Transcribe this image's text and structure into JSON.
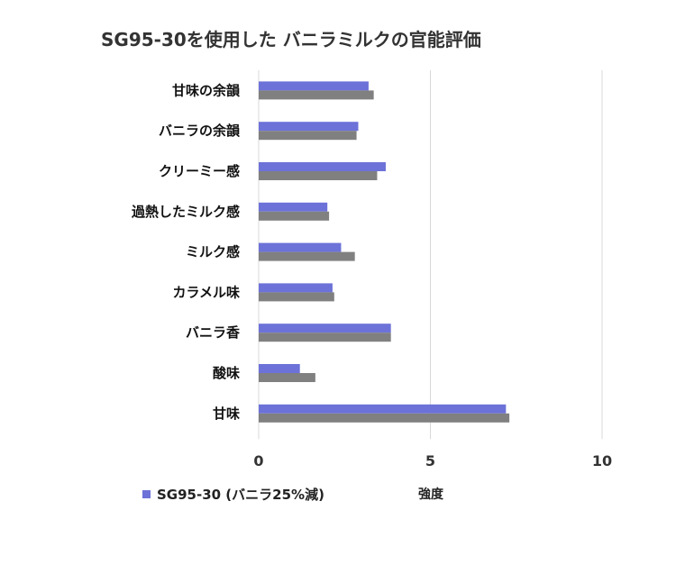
{
  "chart_data": {
    "type": "bar",
    "orientation": "horizontal",
    "title": "SG95-30を使用した バニラミルクの官能評価",
    "categories": [
      "甘味の余韻",
      "バニラの余韻",
      "クリーミー感",
      "過熱したミルク感",
      "ミルク感",
      "カラメル味",
      "バニラ香",
      "酸味",
      "甘味"
    ],
    "series": [
      {
        "name": "SG95-30 (バニラ25%減)",
        "color": "#6c72d8",
        "values": [
          3.2,
          2.9,
          3.7,
          2.0,
          2.4,
          2.15,
          3.85,
          1.2,
          7.2
        ]
      },
      {
        "color": "#808080",
        "values": [
          3.35,
          2.85,
          3.45,
          2.05,
          2.8,
          2.2,
          3.85,
          1.65,
          7.3
        ]
      }
    ],
    "xlabel": "強度",
    "xlim": [
      0,
      10
    ],
    "xticks": [
      "0",
      "5",
      "10"
    ],
    "grid": true,
    "legend_position": "bottom-left",
    "legend_entries": [
      "SG95-30 (バニラ25%減)"
    ]
  }
}
